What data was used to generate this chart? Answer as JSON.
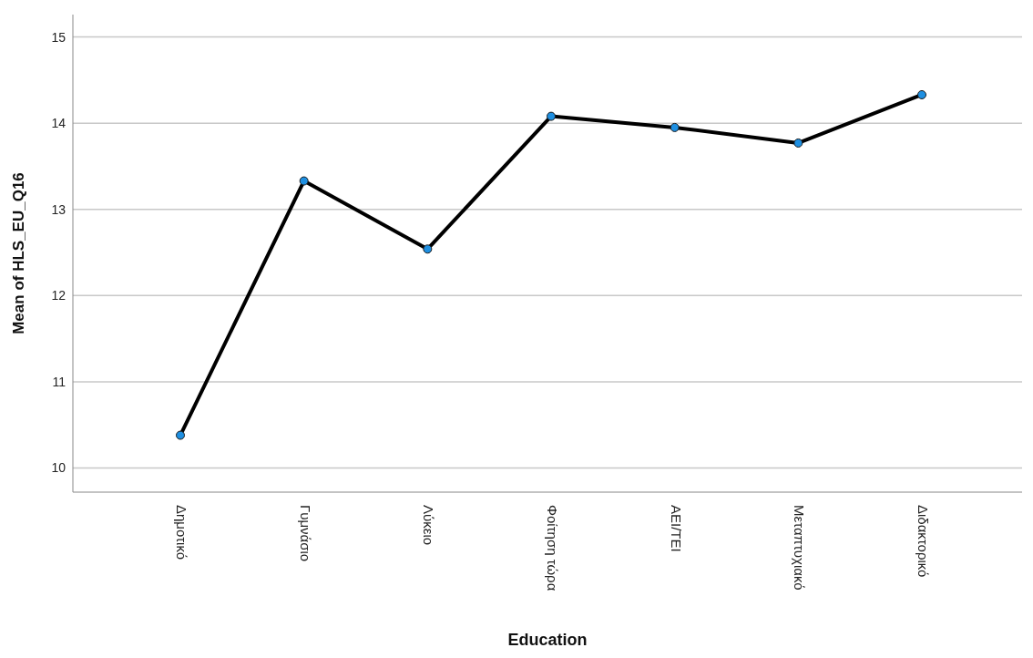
{
  "chart_data": {
    "type": "line",
    "xlabel": "Education",
    "ylabel": "Mean of HLS_EU_Q16",
    "categories": [
      "Δημοτικό",
      "Γυμνάσιο",
      "Λύκειο",
      "Φοίτηση τώρα",
      "ΑΕΙ/ΤΕΙ",
      "Μεταπτυχιακό",
      "Διδακτορικό"
    ],
    "series": [
      {
        "color": "#000000",
        "values": [
          10.38,
          13.33,
          12.54,
          14.08,
          13.95,
          13.77,
          14.33
        ]
      }
    ],
    "ylim": [
      9.72,
      15.26
    ],
    "yticks": [
      10,
      11,
      12,
      13,
      14,
      15
    ],
    "grid": "y",
    "marker": "circle",
    "line_style": "solid",
    "legend": false
  }
}
